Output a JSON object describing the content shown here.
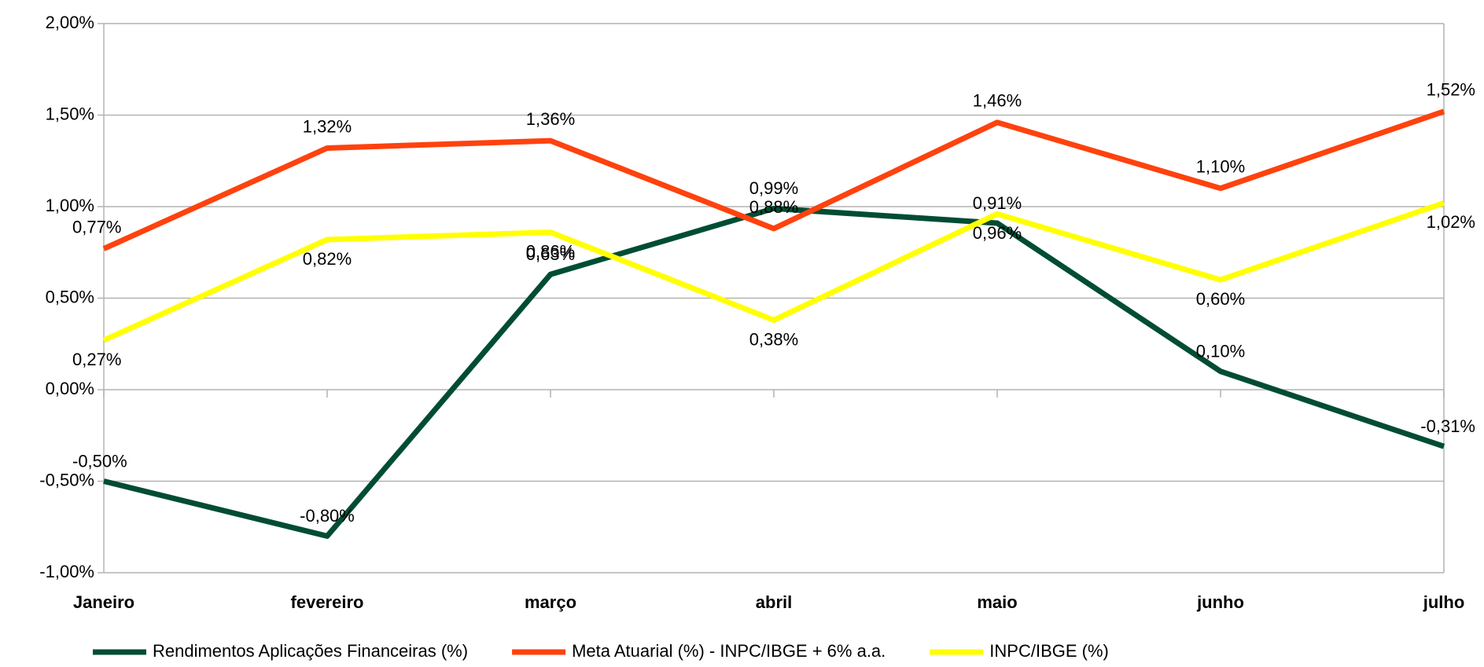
{
  "chart_data": {
    "type": "line",
    "categories": [
      "Janeiro",
      "fevereiro",
      "março",
      "abril",
      "maio",
      "junho",
      "julho"
    ],
    "series": [
      {
        "name": "Rendimentos Aplicações Financeiras (%)",
        "color": "#004d33",
        "values": [
          -0.5,
          -0.8,
          0.63,
          0.99,
          0.91,
          0.1,
          -0.31
        ],
        "value_labels": [
          "-0,50%",
          "-0,80%",
          "0,63%",
          "0,99%",
          "0,91%",
          "0,10%",
          "-0,31%"
        ]
      },
      {
        "name": "Meta Atuarial (%) - INPC/IBGE + 6% a.a.",
        "color": "#ff420e",
        "values": [
          0.77,
          1.32,
          1.36,
          0.88,
          1.46,
          1.1,
          1.52
        ],
        "value_labels": [
          "0,77%",
          "1,32%",
          "1,36%",
          "0,88%",
          "1,46%",
          "1,10%",
          "1,52%"
        ]
      },
      {
        "name": "INPC/IBGE (%)",
        "color": "#ffff00",
        "values": [
          0.27,
          0.82,
          0.86,
          0.38,
          0.96,
          0.6,
          1.02
        ],
        "value_labels": [
          "0,27%",
          "0,82%",
          "0,86%",
          "0,38%",
          "0,96%",
          "0,60%",
          "1,02%"
        ]
      }
    ],
    "ylim": [
      -1,
      2
    ],
    "yticks": [
      {
        "value": -1,
        "label": "-1,00%"
      },
      {
        "value": -0.5,
        "label": "-0,50%"
      },
      {
        "value": 0,
        "label": "0,00%"
      },
      {
        "value": 0.5,
        "label": "0,50%"
      },
      {
        "value": 1,
        "label": "1,00%"
      },
      {
        "value": 1.5,
        "label": "1,50%"
      },
      {
        "value": 2,
        "label": "2,00%"
      }
    ],
    "grid": true,
    "legend": "bottom"
  }
}
